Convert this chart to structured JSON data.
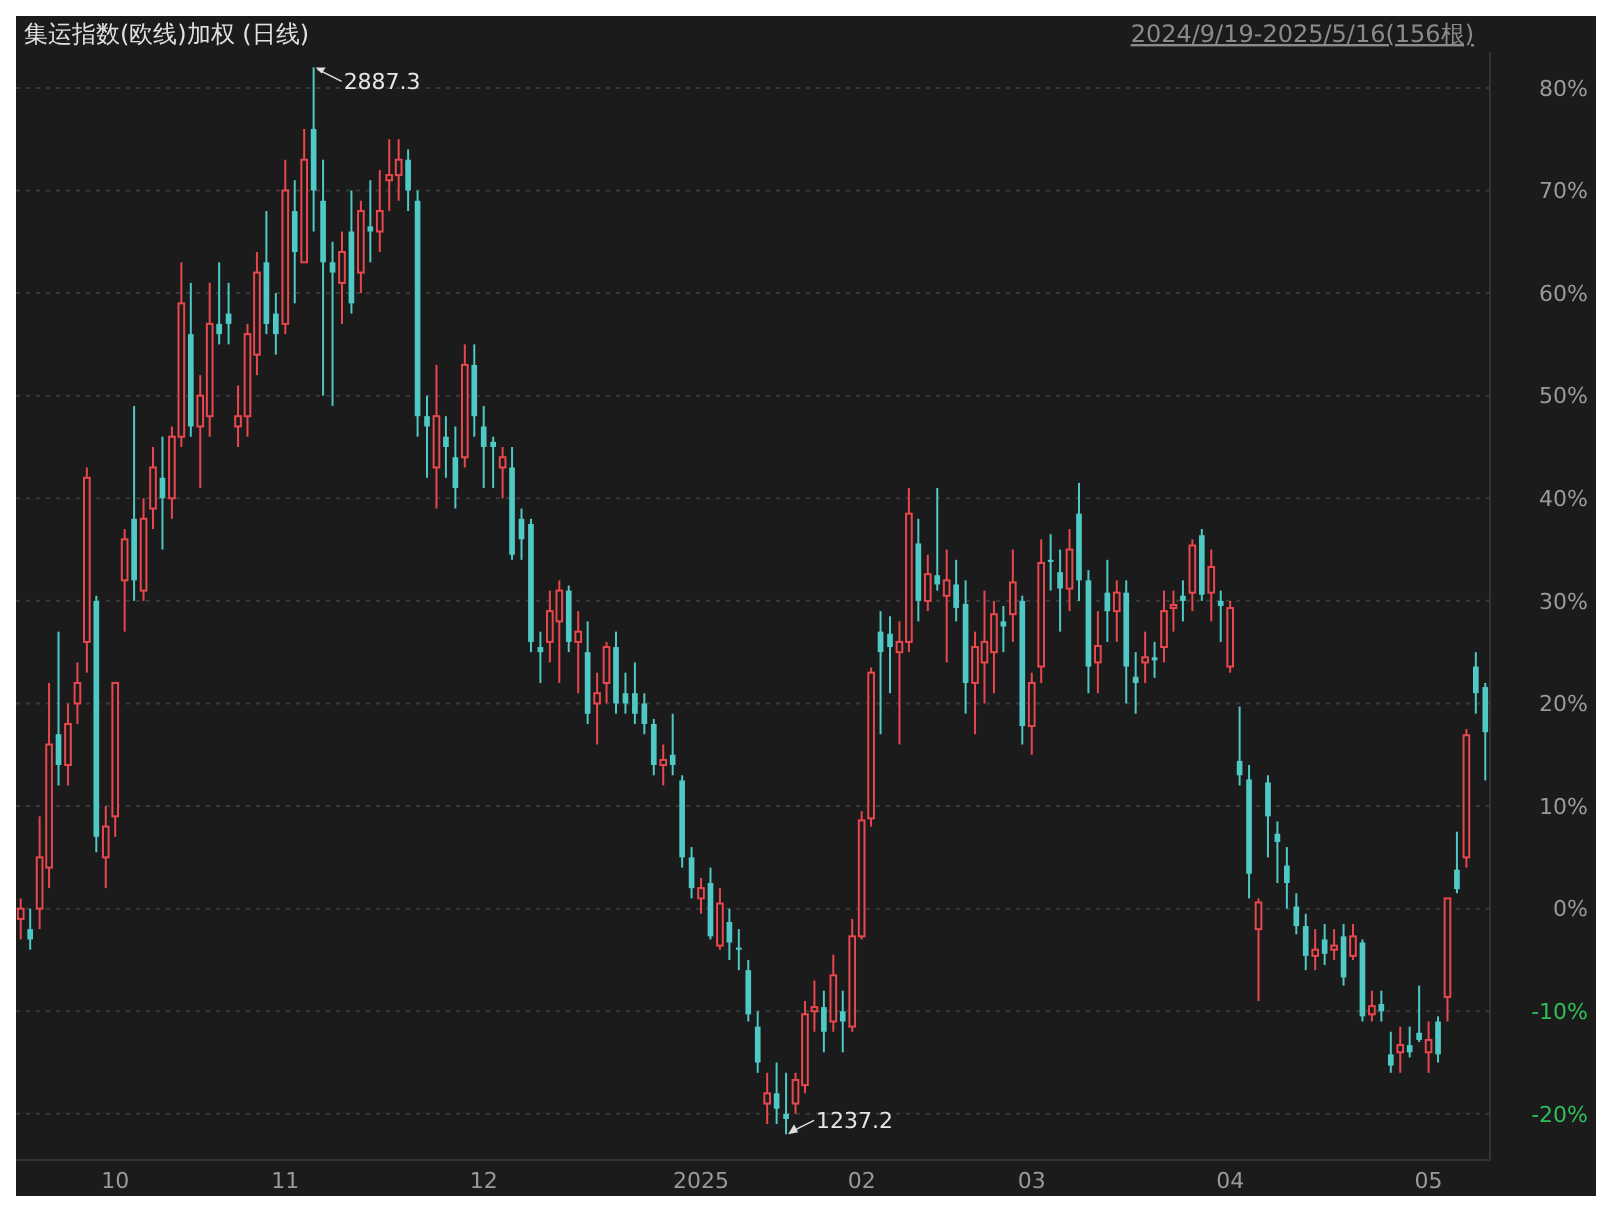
{
  "chart_data": {
    "type": "candlestick",
    "title": "集运指数(欧线)加权 (日线)",
    "subtitle": "2024/9/19-2025/5/16(156根)",
    "categories": [
      null,
      null,
      null,
      null,
      null,
      null,
      null,
      null,
      null,
      null,
      "10",
      null,
      null,
      null,
      null,
      null,
      null,
      null,
      null,
      null,
      null,
      null,
      null,
      null,
      null,
      null,
      null,
      null,
      "11",
      null,
      null,
      null,
      null,
      null,
      null,
      null,
      null,
      null,
      null,
      null,
      null,
      null,
      null,
      null,
      null,
      null,
      null,
      null,
      null,
      "12",
      null,
      null,
      null,
      null,
      null,
      null,
      null,
      null,
      null,
      null,
      null,
      null,
      null,
      null,
      null,
      null,
      null,
      null,
      null,
      null,
      null,
      null,
      "2025",
      null,
      null,
      null,
      null,
      null,
      null,
      null,
      null,
      null,
      null,
      null,
      null,
      null,
      null,
      null,
      null,
      "02",
      null,
      null,
      null,
      null,
      null,
      null,
      null,
      null,
      null,
      null,
      null,
      null,
      null,
      null,
      null,
      null,
      null,
      "03",
      null,
      null,
      null,
      null,
      null,
      null,
      null,
      null,
      null,
      null,
      null,
      null,
      null,
      null,
      null,
      null,
      null,
      null,
      null,
      null,
      "04",
      null,
      null,
      null,
      null,
      null,
      null,
      null,
      null,
      null,
      null,
      null,
      null,
      null,
      null,
      null,
      null,
      null,
      null,
      null,
      null,
      "05",
      null,
      null,
      null,
      null,
      null,
      null
    ],
    "ohlc": [
      [
        -1,
        1,
        -3,
        0
      ],
      [
        -2,
        0,
        -4,
        -3
      ],
      [
        0,
        9,
        -2,
        5
      ],
      [
        4,
        22,
        2,
        16
      ],
      [
        17,
        27,
        12,
        14
      ],
      [
        14,
        20,
        12,
        18
      ],
      [
        20,
        24,
        18,
        22
      ],
      [
        26,
        43,
        23,
        42
      ],
      [
        30,
        30.5,
        5.5,
        7
      ],
      [
        5,
        10,
        2,
        8
      ],
      [
        9,
        22,
        7,
        22
      ],
      [
        32,
        37,
        27,
        36
      ],
      [
        38,
        49,
        30,
        32
      ],
      [
        31,
        40,
        30,
        38
      ],
      [
        39,
        45,
        37,
        43
      ],
      [
        42,
        46,
        35,
        40
      ],
      [
        40,
        47,
        38,
        46
      ],
      [
        46,
        63,
        45,
        59
      ],
      [
        56,
        61,
        46,
        47
      ],
      [
        47,
        52,
        41,
        50
      ],
      [
        48,
        61,
        46,
        57
      ],
      [
        57,
        63,
        55,
        56
      ],
      [
        58,
        61,
        55,
        57
      ],
      [
        47,
        51,
        45,
        48
      ],
      [
        48,
        57,
        46,
        56
      ],
      [
        54,
        64,
        52,
        62
      ],
      [
        63,
        68,
        56,
        57
      ],
      [
        58,
        60,
        54,
        56
      ],
      [
        57,
        73,
        56,
        70
      ],
      [
        68,
        71,
        59,
        64
      ],
      [
        63,
        76,
        63,
        73
      ],
      [
        76,
        82,
        66,
        70
      ],
      [
        69,
        73,
        50,
        63
      ],
      [
        63,
        65,
        49,
        62
      ],
      [
        61,
        66,
        57,
        64
      ],
      [
        66,
        70,
        58,
        59
      ],
      [
        62,
        69,
        60,
        68
      ],
      [
        66.5,
        71,
        63,
        66
      ],
      [
        66,
        72,
        64,
        68
      ],
      [
        71,
        75,
        68,
        71.5
      ],
      [
        71.5,
        75,
        69,
        73
      ],
      [
        73,
        74,
        68,
        70
      ],
      [
        69,
        70,
        46,
        48
      ],
      [
        48,
        50,
        42,
        47
      ],
      [
        43,
        53,
        39,
        48
      ],
      [
        46,
        48,
        42,
        45
      ],
      [
        44,
        47,
        39,
        41
      ],
      [
        44,
        55,
        43,
        53
      ],
      [
        53,
        55,
        46,
        48
      ],
      [
        47,
        49,
        41,
        45
      ],
      [
        45.5,
        46,
        41,
        45
      ],
      [
        43,
        45,
        40,
        44
      ],
      [
        43,
        45,
        34,
        34.5
      ],
      [
        38,
        39,
        34,
        36
      ],
      [
        37.5,
        38,
        25,
        26
      ],
      [
        25.5,
        27,
        22,
        25
      ],
      [
        26,
        31,
        24,
        29
      ],
      [
        28,
        32,
        22,
        31
      ],
      [
        31,
        31.5,
        25,
        26
      ],
      [
        26,
        29,
        21,
        27
      ],
      [
        25,
        28,
        18,
        19
      ],
      [
        20,
        23,
        16,
        21
      ],
      [
        22,
        26,
        20,
        25.5
      ],
      [
        25.5,
        27,
        19,
        20
      ],
      [
        21,
        23,
        19,
        20
      ],
      [
        21,
        24,
        18,
        19
      ],
      [
        20,
        21,
        17,
        18
      ],
      [
        18,
        18.5,
        13,
        14
      ],
      [
        14,
        16,
        12,
        14.5
      ],
      [
        15,
        19,
        13,
        14
      ],
      [
        12.5,
        13,
        4,
        5
      ],
      [
        5,
        6,
        1,
        2
      ],
      [
        1,
        3,
        -0.5,
        2
      ],
      [
        2.5,
        4,
        -3,
        -2.7
      ],
      [
        -3.6,
        2,
        -4,
        0.5
      ],
      [
        -1.3,
        0,
        -5,
        -3.3
      ],
      [
        -3.8,
        -2,
        -6,
        -4
      ],
      [
        -6,
        -5,
        -11,
        -10.3
      ],
      [
        -11.5,
        -10,
        -16,
        -15
      ],
      [
        -19,
        -16,
        -21,
        -18
      ],
      [
        -18,
        -15,
        -21,
        -19.5
      ],
      [
        -20,
        -16,
        -22,
        -20.5
      ],
      [
        -19,
        -16,
        -20,
        -16.7
      ],
      [
        -17.2,
        -9,
        -18,
        -10.3
      ],
      [
        -10,
        -7,
        -12,
        -9.6
      ],
      [
        -9.6,
        -8,
        -14,
        -12
      ],
      [
        -11,
        -4.5,
        -12,
        -6.5
      ],
      [
        -10,
        -8,
        -14,
        -11
      ],
      [
        -11.5,
        -1,
        -12,
        -2.7
      ],
      [
        -2.7,
        9.5,
        -3,
        8.6
      ],
      [
        8.8,
        23.5,
        8,
        23
      ],
      [
        27,
        29,
        17,
        25
      ],
      [
        26.8,
        28.5,
        21,
        25.5
      ],
      [
        25,
        28,
        16,
        26
      ],
      [
        26,
        41,
        25,
        38.5
      ],
      [
        35.6,
        38,
        28,
        30
      ],
      [
        30,
        34.5,
        29,
        32.6
      ],
      [
        32.5,
        41,
        31,
        31.6
      ],
      [
        30.5,
        35,
        24,
        32
      ],
      [
        31.6,
        34,
        28,
        29.3
      ],
      [
        29.7,
        32,
        19,
        22
      ],
      [
        22,
        27,
        17,
        25.5
      ],
      [
        24,
        31,
        20,
        26
      ],
      [
        25,
        30,
        21,
        28.7
      ],
      [
        28,
        29.5,
        25,
        27.5
      ],
      [
        28.7,
        35,
        26,
        31.8
      ],
      [
        30,
        30.5,
        16,
        17.8
      ],
      [
        17.8,
        23,
        15,
        22
      ],
      [
        23.6,
        36,
        22,
        33.7
      ],
      [
        34,
        36.5,
        31,
        33.8
      ],
      [
        32.8,
        35,
        27,
        31.2
      ],
      [
        31.2,
        37,
        29,
        35
      ],
      [
        38.5,
        41.5,
        30,
        32
      ],
      [
        32,
        33,
        21,
        23.6
      ],
      [
        24,
        29,
        21,
        25.6
      ],
      [
        30.8,
        34,
        26,
        29
      ],
      [
        29,
        32,
        26,
        30.8
      ],
      [
        30.8,
        32,
        20,
        23.6
      ],
      [
        22.6,
        25,
        19,
        22
      ],
      [
        24,
        27,
        22,
        24.5
      ],
      [
        24.5,
        26,
        22.5,
        24.2
      ],
      [
        25.5,
        31,
        24,
        29
      ],
      [
        29.3,
        31,
        27,
        29.6
      ],
      [
        30.5,
        32,
        28,
        30
      ],
      [
        30.8,
        36,
        29,
        35.4
      ],
      [
        36.4,
        37,
        30,
        30.6
      ],
      [
        30.8,
        35,
        28,
        33.3
      ],
      [
        30,
        31,
        26,
        29.5
      ],
      [
        23.6,
        30,
        23,
        29.3
      ],
      [
        14.4,
        19.7,
        12,
        13
      ],
      [
        12.6,
        14,
        1,
        3.4
      ],
      [
        -2,
        1,
        -9,
        0.6
      ],
      [
        12.3,
        13,
        5,
        9
      ],
      [
        7.3,
        8.5,
        2.5,
        6.5
      ],
      [
        4.2,
        6,
        0,
        2.5
      ],
      [
        0.2,
        1.5,
        -2.5,
        -1.7
      ],
      [
        -1.7,
        -0.5,
        -6,
        -4.6
      ],
      [
        -4.6,
        -2,
        -6,
        -4
      ],
      [
        -3,
        -1.5,
        -5.5,
        -4.4
      ],
      [
        -4,
        -2,
        -5,
        -3.6
      ],
      [
        -2.7,
        -1.5,
        -7.5,
        -6.7
      ],
      [
        -4.6,
        -1.5,
        -5,
        -2.7
      ],
      [
        -3.3,
        -3,
        -11,
        -10.5
      ],
      [
        -10.3,
        -8,
        -11,
        -9.5
      ],
      [
        -9.3,
        -8,
        -11,
        -10
      ],
      [
        -14.2,
        -12,
        -16,
        -15.3
      ],
      [
        -14,
        -11.5,
        -16,
        -13.3
      ],
      [
        -13.3,
        -11.5,
        -14.5,
        -14
      ],
      [
        -12.1,
        -7.5,
        -13,
        -12.8
      ],
      [
        -14,
        -11,
        -16,
        -12.8
      ],
      [
        -11,
        -10.5,
        -15,
        -14.2
      ],
      [
        -8.6,
        1,
        -11,
        1
      ],
      [
        3.8,
        7.5,
        1.5,
        1.9
      ],
      [
        5,
        17.5,
        4,
        16.9
      ],
      [
        23.6,
        25,
        19,
        21
      ],
      [
        21.6,
        22,
        12.5,
        17.2
      ]
    ],
    "colors": [
      "#e8474d",
      "#4fc9c6",
      "#e8474d",
      "#e8474d",
      "#4fc9c6",
      "#e8474d",
      "#e8474d",
      "#e8474d",
      "#4fc9c6",
      "#e8474d",
      "#e8474d",
      "#e8474d",
      "#4fc9c6",
      "#e8474d",
      "#e8474d",
      "#4fc9c6",
      "#e8474d",
      "#e8474d",
      "#4fc9c6",
      "#e8474d",
      "#e8474d",
      "#4fc9c6",
      "#4fc9c6",
      "#e8474d",
      "#e8474d",
      "#e8474d",
      "#4fc9c6",
      "#4fc9c6",
      "#e8474d",
      "#4fc9c6",
      "#e8474d",
      "#4fc9c6",
      "#4fc9c6",
      "#4fc9c6",
      "#e8474d",
      "#4fc9c6",
      "#e8474d",
      "#4fc9c6",
      "#e8474d",
      "#e8474d",
      "#e8474d",
      "#4fc9c6",
      "#4fc9c6",
      "#4fc9c6",
      "#e8474d",
      "#4fc9c6",
      "#4fc9c6",
      "#e8474d",
      "#4fc9c6",
      "#4fc9c6",
      "#4fc9c6",
      "#e8474d",
      "#4fc9c6",
      "#4fc9c6",
      "#4fc9c6",
      "#4fc9c6",
      "#e8474d",
      "#e8474d",
      "#4fc9c6",
      "#e8474d",
      "#4fc9c6",
      "#e8474d",
      "#e8474d",
      "#4fc9c6",
      "#4fc9c6",
      "#4fc9c6",
      "#4fc9c6",
      "#4fc9c6",
      "#e8474d",
      "#4fc9c6",
      "#4fc9c6",
      "#4fc9c6",
      "#e8474d",
      "#4fc9c6",
      "#e8474d",
      "#4fc9c6",
      "#4fc9c6",
      "#4fc9c6",
      "#4fc9c6",
      "#e8474d",
      "#4fc9c6",
      "#4fc9c6",
      "#e8474d",
      "#e8474d",
      "#e8474d",
      "#4fc9c6",
      "#e8474d",
      "#4fc9c6",
      "#e8474d",
      "#e8474d",
      "#e8474d",
      "#4fc9c6",
      "#4fc9c6",
      "#e8474d",
      "#e8474d",
      "#4fc9c6",
      "#e8474d",
      "#4fc9c6",
      "#e8474d",
      "#4fc9c6",
      "#4fc9c6",
      "#e8474d",
      "#e8474d",
      "#e8474d",
      "#4fc9c6",
      "#e8474d",
      "#4fc9c6",
      "#e8474d",
      "#e8474d",
      "#4fc9c6",
      "#4fc9c6",
      "#e8474d",
      "#4fc9c6",
      "#4fc9c6",
      "#e8474d",
      "#4fc9c6",
      "#e8474d",
      "#4fc9c6",
      "#4fc9c6",
      "#e8474d",
      "#4fc9c6",
      "#e8474d",
      "#e8474d",
      "#4fc9c6",
      "#e8474d",
      "#4fc9c6",
      "#e8474d",
      "#4fc9c6",
      "#e8474d",
      "#4fc9c6",
      "#4fc9c6",
      "#e8474d",
      "#4fc9c6",
      "#4fc9c6",
      "#4fc9c6",
      "#4fc9c6",
      "#4fc9c6",
      "#e8474d",
      "#4fc9c6",
      "#e8474d",
      "#4fc9c6",
      "#e8474d",
      "#4fc9c6",
      "#e8474d",
      "#4fc9c6",
      "#4fc9c6",
      "#e8474d",
      "#4fc9c6",
      "#4fc9c6",
      "#e8474d",
      "#4fc9c6",
      "#e8474d",
      "#4fc9c6",
      "#e8474d",
      "#4fc9c6",
      "#4fc9c6"
    ],
    "ylim": [
      -24.5,
      83.5
    ],
    "yticks": [
      {
        "value": -20,
        "label": "-20%"
      },
      {
        "value": -10,
        "label": "-10%"
      },
      {
        "value": 0,
        "label": "0%"
      },
      {
        "value": 10,
        "label": "10%"
      },
      {
        "value": 20,
        "label": "20%"
      },
      {
        "value": 30,
        "label": "30%"
      },
      {
        "value": 40,
        "label": "40%"
      },
      {
        "value": 50,
        "label": "50%"
      },
      {
        "value": 60,
        "label": "60%"
      },
      {
        "value": 70,
        "label": "70%"
      },
      {
        "value": 80,
        "label": "80%"
      }
    ],
    "grid": "y",
    "annotations": [
      "2887.3",
      "1237.2"
    ]
  }
}
